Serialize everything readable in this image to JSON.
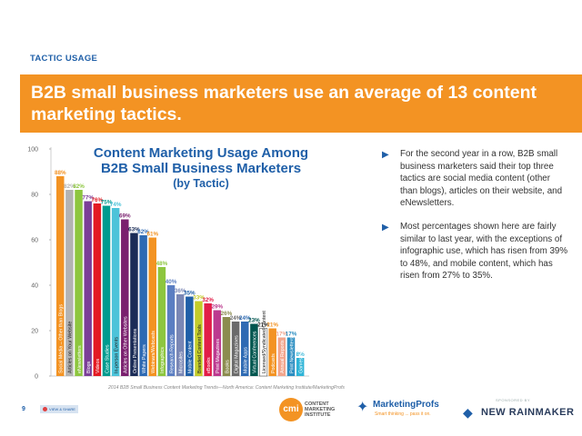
{
  "header": {
    "section_tag": "TACTIC USAGE",
    "banner_title": "B2B small business marketers use an average of 13 content marketing tactics."
  },
  "chart_title": {
    "line1": "Content Marketing Usage Among",
    "line2": "B2B Small Business Marketers",
    "line3": "(by Tactic)"
  },
  "bullets": [
    "For the second year in a row, B2B small business marketers said their top three tactics are social media content (other than blogs), articles on their website, and eNewsletters.",
    "Most percentages shown here are fairly similar to last year, with the exceptions of infographic use, which has risen from 39% to 48%, and mobile content, which has risen from 27% to 35%."
  ],
  "footer": {
    "source": "2014 B2B Small Business Content Marketing Trends—North America: Content Marketing Institute/MarketingProfs",
    "page_number": "9",
    "badge_text": "VIEW & SHARE",
    "cmi_mark": "cmi",
    "cmi_name": "CONTENT MARKETING INSTITUTE",
    "mp_name": "MarketingProfs",
    "mp_tagline": "Smart thinking ... pass it on.",
    "nr_sponsor": "SPONSORED BY",
    "nr_name": "NEW RAINMAKER"
  },
  "colors": {
    "accent_orange": "#f39323",
    "brand_blue": "#1f5fa8"
  },
  "chart_data": {
    "type": "bar",
    "title": "Content Marketing Usage Among B2B Small Business Marketers (by Tactic)",
    "ylim": [
      0,
      100
    ],
    "yticks": [
      0,
      20,
      40,
      60,
      80,
      100
    ],
    "categories": [
      "Social Media – Other than Blogs",
      "Articles on Your Website",
      "eNewsletters",
      "Blogs",
      "Videos",
      "Case Studies",
      "In-person Events",
      "Articles on Other Websites",
      "Online Presentations",
      "White Papers",
      "Webinars/Webcasts",
      "Infographics",
      "Research Reports",
      "Microsites",
      "Mobile Content",
      "Branded Content Tools",
      "eBooks",
      "Print Magazines",
      "Books",
      "Digital Magazines",
      "Mobile Apps",
      "Virtual Conferences",
      "Licensed/Syndicated Content",
      "Podcasts",
      "Annual Reports",
      "Print Newsletters",
      "Games/Gamification"
    ],
    "values": [
      88,
      82,
      82,
      77,
      76,
      75,
      74,
      69,
      63,
      62,
      61,
      48,
      40,
      36,
      35,
      33,
      32,
      29,
      26,
      24,
      24,
      23,
      21,
      21,
      17,
      17,
      8
    ],
    "value_labels": [
      "88%",
      "82%",
      "82%",
      "77%",
      "76%",
      "75%",
      "74%",
      "69%",
      "63%",
      "62%",
      "61%",
      "48%",
      "40%",
      "36%",
      "35%",
      "33%",
      "32%",
      "29%",
      "26%",
      "24%",
      "24%",
      "23%",
      "21%",
      "21%",
      "17%",
      "17%",
      "8%"
    ],
    "bar_colors": [
      "#f39323",
      "#b3b3b3",
      "#8dc63f",
      "#7b3f98",
      "#e31b23",
      "#009b8f",
      "#4cc3d9",
      "#7a1f6e",
      "#1b2c57",
      "#2e6ab3",
      "#f39323",
      "#8dc63f",
      "#5b7ec2",
      "#7a87b5",
      "#1f5fa8",
      "#c3cc2a",
      "#e21d48",
      "#bc3a8f",
      "#8c8c4f",
      "#6b6b6b",
      "#2e6ab3",
      "#00564f",
      "#ffffff",
      "#f39323",
      "#f2a68d",
      "#2a8dc1",
      "#2fb4d7"
    ]
  }
}
